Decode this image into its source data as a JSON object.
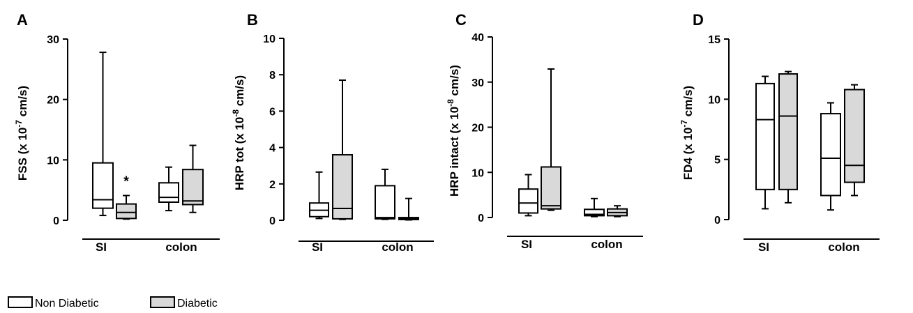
{
  "chart_data": [
    {
      "type": "box",
      "panel_label": "A",
      "ylabel_main": "FSS (x 10",
      "ylabel_exp": "-7",
      "ylabel_end": " cm/s)",
      "ylim": [
        0,
        30
      ],
      "yticks": [
        "0",
        "10",
        "20",
        "30"
      ],
      "categories": [
        "SI",
        "colon"
      ],
      "series": [
        {
          "name": "Non Diabetic",
          "boxes": [
            {
              "min": 0.8,
              "q1": 2.0,
              "median": 3.4,
              "q3": 9.5,
              "max": 27.8
            },
            {
              "min": 1.6,
              "q1": 3.0,
              "median": 3.8,
              "q3": 6.2,
              "max": 8.8
            }
          ]
        },
        {
          "name": "Diabetic",
          "boxes": [
            {
              "min": 0.2,
              "q1": 0.3,
              "median": 1.3,
              "q3": 2.7,
              "max": 4.1
            },
            {
              "min": 1.3,
              "q1": 2.6,
              "median": 3.2,
              "q3": 8.4,
              "max": 12.4
            }
          ]
        }
      ],
      "annotations": [
        {
          "text": "*",
          "category": 0,
          "series": 1
        }
      ]
    },
    {
      "type": "box",
      "panel_label": "B",
      "ylabel_main": "HRP tot (x 10",
      "ylabel_exp": "-8",
      "ylabel_end": " cm/s)",
      "ylim": [
        0,
        10
      ],
      "yticks": [
        "0",
        "2",
        "4",
        "6",
        "8",
        "10"
      ],
      "categories": [
        "SI",
        "colon"
      ],
      "series": [
        {
          "name": "Non Diabetic",
          "boxes": [
            {
              "min": 0.1,
              "q1": 0.2,
              "median": 0.55,
              "q3": 0.95,
              "max": 2.65
            },
            {
              "min": 0.05,
              "q1": 0.08,
              "median": 0.15,
              "q3": 1.9,
              "max": 2.8
            }
          ]
        },
        {
          "name": "Diabetic",
          "boxes": [
            {
              "min": 0.05,
              "q1": 0.08,
              "median": 0.65,
              "q3": 3.6,
              "max": 7.7
            },
            {
              "min": 0.02,
              "q1": 0.04,
              "median": 0.1,
              "q3": 0.15,
              "max": 1.2
            }
          ]
        }
      ],
      "annotations": []
    },
    {
      "type": "box",
      "panel_label": "C",
      "ylabel_main": "HRP intact (x 10",
      "ylabel_exp": "-8",
      "ylabel_end": " cm/s)",
      "ylim": [
        0,
        40
      ],
      "yticks": [
        "0",
        "10",
        "20",
        "30",
        "40"
      ],
      "categories": [
        "SI",
        "colon"
      ],
      "series": [
        {
          "name": "Non Diabetic",
          "boxes": [
            {
              "min": 0.4,
              "q1": 1.0,
              "median": 3.2,
              "q3": 6.3,
              "max": 9.5
            },
            {
              "min": 0.2,
              "q1": 0.4,
              "median": 0.7,
              "q3": 1.8,
              "max": 4.2
            }
          ]
        },
        {
          "name": "Diabetic",
          "boxes": [
            {
              "min": 1.6,
              "q1": 1.9,
              "median": 2.6,
              "q3": 11.2,
              "max": 32.9
            },
            {
              "min": 0.2,
              "q1": 0.4,
              "median": 1.1,
              "q3": 1.9,
              "max": 2.6
            }
          ]
        }
      ],
      "annotations": []
    },
    {
      "type": "box",
      "panel_label": "D",
      "ylabel_main": "FD4 (x 10",
      "ylabel_exp": "-7",
      "ylabel_end": " cm/s)",
      "ylim": [
        0,
        15
      ],
      "yticks": [
        "0",
        "5",
        "10",
        "15"
      ],
      "categories": [
        "SI",
        "colon"
      ],
      "series": [
        {
          "name": "Non Diabetic",
          "boxes": [
            {
              "min": 0.9,
              "q1": 2.5,
              "median": 8.3,
              "q3": 11.3,
              "max": 11.9
            },
            {
              "min": 0.8,
              "q1": 2.0,
              "median": 5.1,
              "q3": 8.8,
              "max": 9.7
            }
          ]
        },
        {
          "name": "Diabetic",
          "boxes": [
            {
              "min": 1.4,
              "q1": 2.5,
              "median": 8.6,
              "q3": 12.1,
              "max": 12.3
            },
            {
              "min": 2.0,
              "q1": 3.1,
              "median": 4.5,
              "q3": 10.8,
              "max": 11.2
            }
          ]
        }
      ],
      "annotations": []
    }
  ],
  "legend": [
    {
      "label": "Non Diabetic",
      "fill": "#ffffff"
    },
    {
      "label": "Diabetic",
      "fill": "#d9d9d9"
    }
  ],
  "colors": {
    "stroke": "#000000",
    "non_diabetic_fill": "#ffffff",
    "diabetic_fill": "#d9d9d9"
  }
}
